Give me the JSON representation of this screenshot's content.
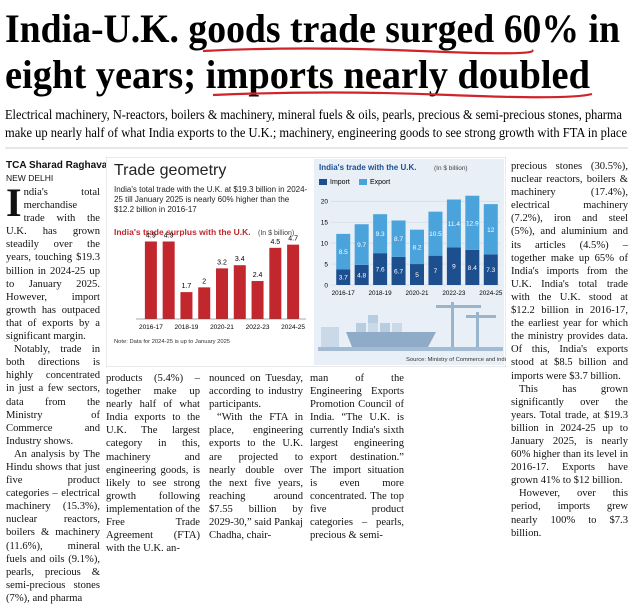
{
  "headline": [
    "India-U.K. goods trade surged 60% in",
    "eight years; imports nearly doubled"
  ],
  "deck": [
    "Electrical machinery, N-reactors, boilers & machinery, mineral fuels & oils, pearls, precious & semi-precious stones, pharma",
    "make up nearly half of what India exports to the U.K.; machinery, engineering goods to see strong growth with FTA in place"
  ],
  "byline": {
    "author": "TCA Sharad Raghavan",
    "location": "NEW DELHI"
  },
  "columns": [
    [
      "India's total merchandise trade with the U.K. has grown steadily over the years, touching $19.3 billion in 2024-25 up to January 2025. However, import growth has outpaced that of exports by a significant margin.",
      "Notably, trade in both directions is highly concentrated in just a few sectors, data from the Ministry of Commerce and Industry shows.",
      "An analysis by The Hindu shows that just five product categories – electrical machinery (15.3%), nuclear reactors, boilers & machinery (11.6%), mineral fuels and oils (9.1%), pearls, precious & semi-precious stones (7%), and pharma"
    ],
    [
      "products (5.4%) – together make up nearly half of what India exports to the U.K. The largest category in this, machinery and engineering goods, is likely to see strong growth following implementation of the Free Trade Agreement (FTA) with the U.K. an-"
    ],
    [
      "nounced on Tuesday, according to industry participants.",
      "“With the FTA in place, engineering exports to the U.K. are projected to nearly double over the next five years, reaching around $7.55 billion by 2029-30,” said Pankaj Chadha, chair-"
    ],
    [
      "man of the Engineering Exports Promotion Council of India. “The U.K. is currently India's sixth largest engineering export destination.” The import situation is even more concentrated. The top five product categories – pearls, precious & semi-"
    ],
    [
      "precious stones (30.5%), nuclear reactors, boilers & machinery (17.4%), electrical machinery (7.2%), iron and steel (5%), and aluminium and its articles (4.5%) – together make up 65% of India's imports from the U.K. India's total trade with the U.K. stood at $12.2 billion in 2016-17, the earliest year for which the ministry provides data. Of this, India's exports stood at $8.5 billion and imports were $3.7 billion.",
      "This has grown significantly over the years. Total trade, at $19.3 billion in 2024-25 up to January 2025, is nearly 60% higher than its level in 2016-17. Exports have grown 41% to $12 billion.",
      "However, over this period, imports grew nearly 100% to $7.3 billion."
    ]
  ],
  "graphic": {
    "title": "Trade geometry",
    "intro": "India's total trade with the U.K. at $19.3 billion in 2024-25 till January 2025 is nearly 60% higher than the $12.2 billion in 2016-17"
  },
  "chart_data": [
    {
      "type": "bar",
      "title": "India's trade surplus with the U.K.",
      "subtitle": "(In $ billion)",
      "color": "#c1272d",
      "categories": [
        "2016-17",
        null,
        "2018-19",
        null,
        "2020-21",
        null,
        "2022-23",
        null,
        "2024-25"
      ],
      "values": [
        4.9,
        4.9,
        1.7,
        2,
        3.2,
        3.4,
        2.4,
        4.5,
        4.7
      ],
      "ylim": [
        0,
        5.5
      ],
      "note": "Note: Data for 2024-25 is up to January 2025"
    },
    {
      "type": "stacked-bar",
      "title": "India's trade with the U.K.",
      "subtitle": "(In $ billion)",
      "categories": [
        "2016-17",
        null,
        "2018-19",
        null,
        "2020-21",
        null,
        "2022-23",
        null,
        "2024-25"
      ],
      "series": [
        {
          "name": "Import",
          "color": "#1d4f8f",
          "values": [
            3.7,
            4.8,
            7.6,
            6.7,
            5,
            7,
            9,
            8.4,
            7.3
          ]
        },
        {
          "name": "Export",
          "color": "#4ba3dc",
          "values": [
            8.5,
            9.7,
            9.3,
            8.7,
            8.2,
            10.5,
            11.4,
            12.9,
            12
          ]
        }
      ],
      "ylim": [
        0,
        21
      ],
      "yticks": [
        0,
        5,
        10,
        15,
        20
      ],
      "grid": true,
      "source": "Source: Ministry of Commerce and industry"
    }
  ]
}
